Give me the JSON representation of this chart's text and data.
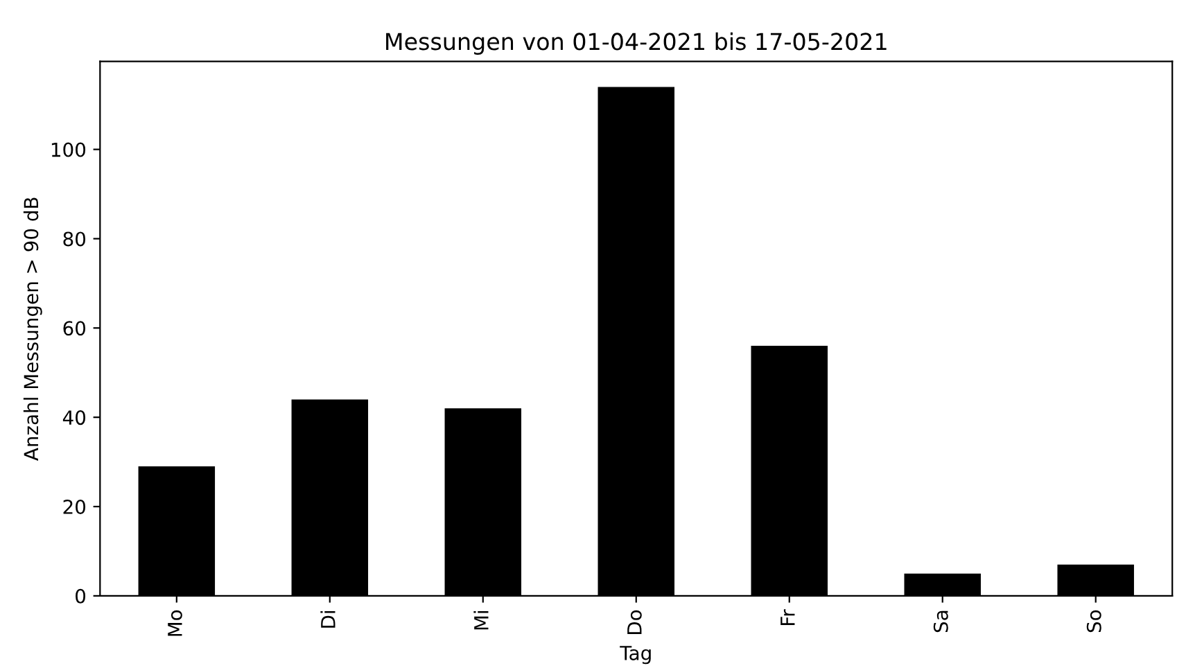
{
  "chart_data": {
    "type": "bar",
    "title": "Messungen von 01-04-2021 bis 17-05-2021",
    "xlabel": "Tag",
    "ylabel": "Anzahl Messungen > 90 dB",
    "categories": [
      "Mo",
      "Di",
      "Mi",
      "Do",
      "Fr",
      "Sa",
      "So"
    ],
    "values": [
      29,
      44,
      42,
      114,
      56,
      5,
      7
    ],
    "color": "#000000",
    "ylim": [
      0,
      119.7
    ],
    "yticks": [
      0,
      20,
      40,
      60,
      80,
      100
    ],
    "grid": false
  }
}
